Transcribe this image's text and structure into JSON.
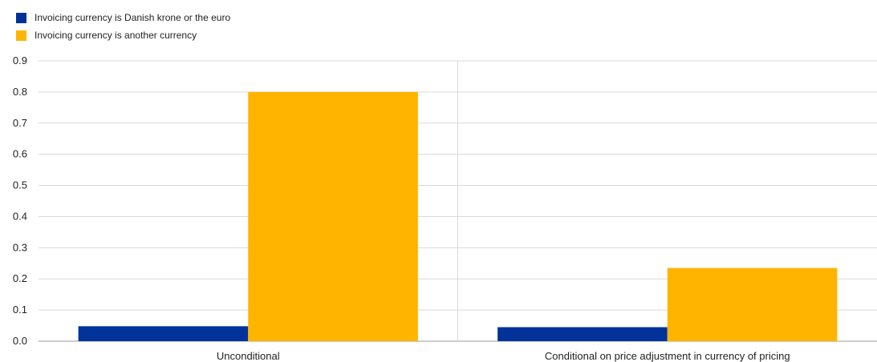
{
  "chart_data": {
    "type": "bar",
    "categories": [
      "Unconditional",
      "Conditional on price adjustment in currency of pricing"
    ],
    "series": [
      {
        "name": "Invoicing currency is Danish krone or the euro",
        "color": "#003299",
        "values": [
          0.048,
          0.045
        ]
      },
      {
        "name": "Invoicing currency is another currency",
        "color": "#FFB400",
        "values": [
          0.8,
          0.235
        ]
      }
    ],
    "yticks": [
      "0.0",
      "0.1",
      "0.2",
      "0.3",
      "0.4",
      "0.5",
      "0.6",
      "0.7",
      "0.8",
      "0.9"
    ],
    "ylim": [
      0,
      0.9
    ],
    "grid": true,
    "legend_position": "top-left",
    "title": "",
    "xlabel": "",
    "ylabel": ""
  }
}
